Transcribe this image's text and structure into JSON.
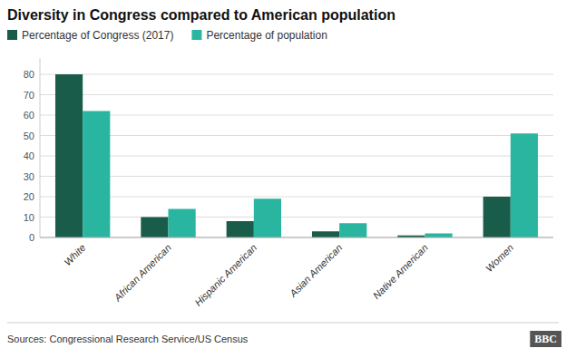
{
  "chart_data": {
    "type": "bar",
    "title": "Diversity in Congress compared to American population",
    "categories": [
      "White",
      "African American",
      "Hispanic American",
      "Asian American",
      "Native American",
      "Women"
    ],
    "series": [
      {
        "name": "Percentage of Congress (2017)",
        "color": "#1a5c4a",
        "values": [
          80,
          10,
          8,
          3,
          1,
          20
        ]
      },
      {
        "name": "Percentage of population",
        "color": "#2ab5a0",
        "values": [
          62,
          14,
          19,
          7,
          2,
          51
        ]
      }
    ],
    "ylim": [
      0,
      88
    ],
    "yticks": [
      0,
      10,
      20,
      30,
      40,
      50,
      60,
      70,
      80
    ],
    "grid": true,
    "legend": "upper left",
    "annotations": [
      "Sources: Congressional Research Service/US Census",
      "BBC"
    ]
  }
}
